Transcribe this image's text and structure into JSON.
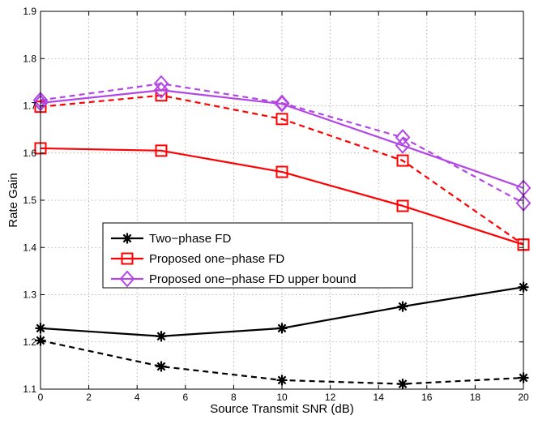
{
  "chart_data": {
    "type": "line",
    "xlabel": "Source Transmit SNR (dB)",
    "ylabel": "Rate Gain",
    "xlim": [
      0,
      20
    ],
    "ylim": [
      1.1,
      1.9
    ],
    "xticks": [
      0,
      2,
      4,
      6,
      8,
      10,
      12,
      14,
      16,
      18,
      20
    ],
    "yticks": [
      1.1,
      1.2,
      1.3,
      1.4,
      1.5,
      1.6,
      1.7,
      1.8,
      1.9
    ],
    "xtick_labels": [
      "0",
      "2",
      "4",
      "6",
      "8",
      "10",
      "12",
      "14",
      "16",
      "18",
      "20"
    ],
    "ytick_labels": [
      "1.1",
      "1.2",
      "1.3",
      "1.4",
      "1.5",
      "1.6",
      "1.7",
      "1.8",
      "1.9"
    ],
    "grid": true,
    "legend_position": "center-left",
    "series": [
      {
        "name": "Two−phase FD",
        "color": "#000000",
        "marker": "asterisk",
        "dash": "solid",
        "in_legend": true,
        "x": [
          0,
          5,
          10,
          15,
          20
        ],
        "y": [
          1.229,
          1.212,
          1.229,
          1.275,
          1.316
        ]
      },
      {
        "name": "",
        "color": "#000000",
        "marker": "asterisk",
        "dash": "dashed",
        "in_legend": false,
        "x": [
          0,
          5,
          10,
          15,
          20
        ],
        "y": [
          1.203,
          1.148,
          1.119,
          1.111,
          1.124
        ]
      },
      {
        "name": "Proposed one−phase FD",
        "color": "#ff0000",
        "marker": "square",
        "dash": "solid",
        "in_legend": true,
        "x": [
          0,
          5,
          10,
          15,
          20
        ],
        "y": [
          1.61,
          1.605,
          1.56,
          1.488,
          1.406
        ]
      },
      {
        "name": "",
        "color": "#ff0000",
        "marker": "square",
        "dash": "dashed",
        "in_legend": false,
        "x": [
          0,
          5,
          10,
          15,
          20
        ],
        "y": [
          1.698,
          1.722,
          1.672,
          1.584,
          1.406
        ]
      },
      {
        "name": "Proposed one−phase FD upper bound",
        "color": "#b347e6",
        "marker": "diamond",
        "dash": "solid",
        "in_legend": true,
        "x": [
          0,
          5,
          10,
          15,
          20
        ],
        "y": [
          1.706,
          1.733,
          1.704,
          1.616,
          1.526
        ]
      },
      {
        "name": "",
        "color": "#b347e6",
        "marker": "diamond",
        "dash": "dashed",
        "in_legend": false,
        "x": [
          0,
          5,
          10,
          15,
          20
        ],
        "y": [
          1.712,
          1.747,
          1.706,
          1.633,
          1.494
        ]
      }
    ]
  }
}
